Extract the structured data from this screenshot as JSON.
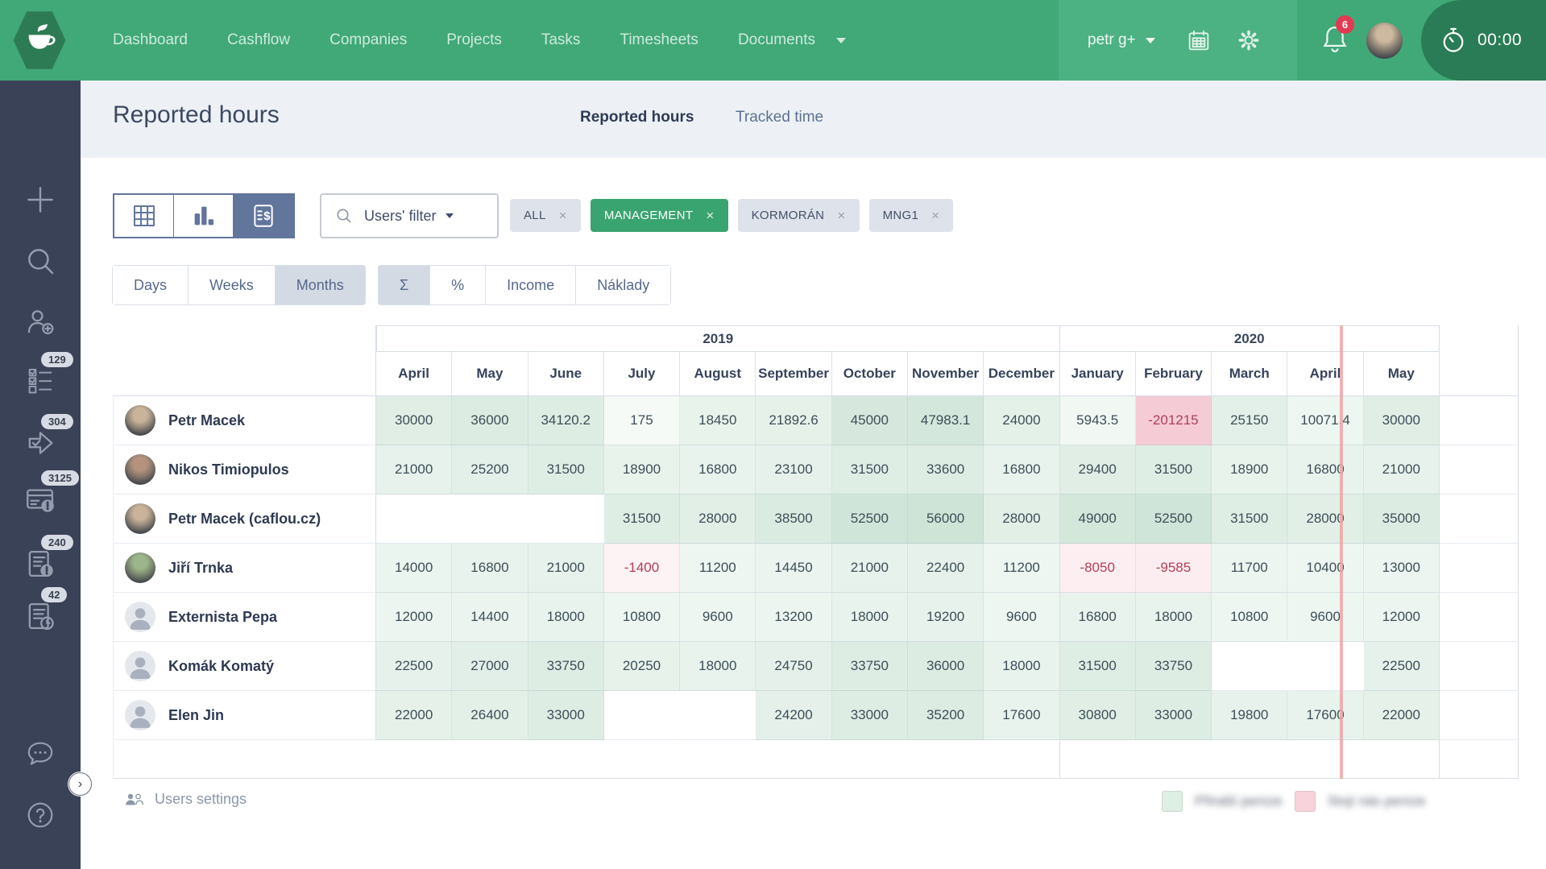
{
  "navbar": {
    "items": [
      {
        "label": "Dashboard"
      },
      {
        "label": "Cashflow"
      },
      {
        "label": "Companies"
      },
      {
        "label": "Projects"
      },
      {
        "label": "Tasks"
      },
      {
        "label": "Timesheets"
      },
      {
        "label": "Documents",
        "caret": true
      }
    ],
    "user_menu": "petr g+",
    "notification_count": "6",
    "timer": "00:00",
    "colors": {
      "navbar_green": "#41A878",
      "panel_green": "#4CB183",
      "timer_green": "#297C55",
      "badge_red": "#E23A52"
    }
  },
  "sidebar": {
    "items": [
      {
        "icon": "plus-icon"
      },
      {
        "icon": "search-icon"
      },
      {
        "icon": "user-add-icon"
      },
      {
        "icon": "checklist-icon",
        "badge": "129"
      },
      {
        "icon": "approve-icon",
        "badge": "304"
      },
      {
        "icon": "card-alert-icon",
        "badge": "3125"
      },
      {
        "icon": "doc-alert-icon",
        "badge": "240"
      },
      {
        "icon": "doc-clock-icon",
        "badge": "42"
      }
    ],
    "bottom_items": [
      {
        "icon": "chat-icon"
      },
      {
        "icon": "help-icon"
      }
    ]
  },
  "header": {
    "title": "Reported hours",
    "tabs": [
      {
        "label": "Reported hours",
        "active": true
      },
      {
        "label": "Tracked time",
        "active": false
      }
    ]
  },
  "filters": {
    "view_toggles": [
      {
        "icon": "grid-icon",
        "active": false
      },
      {
        "icon": "bar-chart-icon",
        "active": false
      },
      {
        "icon": "price-list-icon",
        "active": true
      }
    ],
    "users_filter_label": "Users' filter",
    "chips": [
      {
        "label": "ALL",
        "style": "gray"
      },
      {
        "label": "MANAGEMENT",
        "style": "green"
      },
      {
        "label": "KORMORÁN",
        "style": "gray"
      },
      {
        "label": "MNG1",
        "style": "gray"
      }
    ],
    "period_buttons": [
      {
        "label": "Days",
        "active": false
      },
      {
        "label": "Weeks",
        "active": false
      },
      {
        "label": "Months",
        "active": true
      }
    ],
    "metric_buttons": [
      {
        "label": "Σ",
        "active": true
      },
      {
        "label": "%",
        "active": false
      },
      {
        "label": "Income",
        "active": false
      },
      {
        "label": "Náklady",
        "active": false
      }
    ]
  },
  "table": {
    "type": "table",
    "year_groups": [
      {
        "label": "2019",
        "span": 9
      },
      {
        "label": "2020",
        "span": 5
      }
    ],
    "months": [
      "April",
      "May",
      "June",
      "July",
      "August",
      "September",
      "October",
      "November",
      "December",
      "January",
      "February",
      "March",
      "April",
      "May"
    ],
    "rows": [
      {
        "name": "Petr Macek",
        "avatar": "photo",
        "tint": "#c9b39a",
        "values": [
          "30000",
          "36000",
          "34120.2",
          "175",
          "18450",
          "21892.6",
          "45000",
          "47983.1",
          "24000",
          "5943.5",
          "-201215",
          "25150",
          "10071.4",
          "30000"
        ]
      },
      {
        "name": "Nikos Timiopulos",
        "avatar": "photo",
        "tint": "#b3937e",
        "values": [
          "21000",
          "25200",
          "31500",
          "18900",
          "16800",
          "23100",
          "31500",
          "33600",
          "16800",
          "29400",
          "31500",
          "18900",
          "16800",
          "21000"
        ]
      },
      {
        "name": "Petr Macek (caflou.cz)",
        "avatar": "photo",
        "tint": "#c9b39a",
        "values": [
          "",
          "",
          "",
          "31500",
          "28000",
          "38500",
          "52500",
          "56000",
          "28000",
          "49000",
          "52500",
          "31500",
          "28000",
          "35000"
        ]
      },
      {
        "name": "Jiří Trnka",
        "avatar": "photo",
        "tint": "#9db58a",
        "values": [
          "14000",
          "16800",
          "21000",
          "-1400",
          "11200",
          "14450",
          "21000",
          "22400",
          "11200",
          "-8050",
          "-9585",
          "11700",
          "10400",
          "13000"
        ]
      },
      {
        "name": "Externista Pepa",
        "avatar": "placeholder",
        "values": [
          "12000",
          "14400",
          "18000",
          "10800",
          "9600",
          "13200",
          "18000",
          "19200",
          "9600",
          "16800",
          "18000",
          "10800",
          "9600",
          "12000"
        ]
      },
      {
        "name": "Komák Komatý",
        "avatar": "placeholder",
        "values": [
          "22500",
          "27000",
          "33750",
          "20250",
          "18000",
          "24750",
          "33750",
          "36000",
          "18000",
          "31500",
          "33750",
          "",
          "",
          "22500"
        ]
      },
      {
        "name": "Elen Jin",
        "avatar": "placeholder",
        "values": [
          "22000",
          "26400",
          "33000",
          "",
          "",
          "24200",
          "33000",
          "35200",
          "17600",
          "30800",
          "33000",
          "19800",
          "17600",
          "22000"
        ]
      }
    ],
    "current_date_marker": {
      "column_index": 12,
      "fraction": 0.68
    },
    "heat_colors": {
      "positive_low": "#F5FAF7",
      "positive_high": "#CEE4D7",
      "negative_low": "#FDF3F5",
      "negative_high": "#F5CBD6",
      "negative_text": "#B23F57"
    }
  },
  "footer": {
    "users_settings_label": "Users settings",
    "legend": [
      {
        "color": "#DEEFE4",
        "label": "Přináší peníze"
      },
      {
        "color": "#F8D3DB",
        "label": "Stojí nás peníze"
      }
    ]
  }
}
